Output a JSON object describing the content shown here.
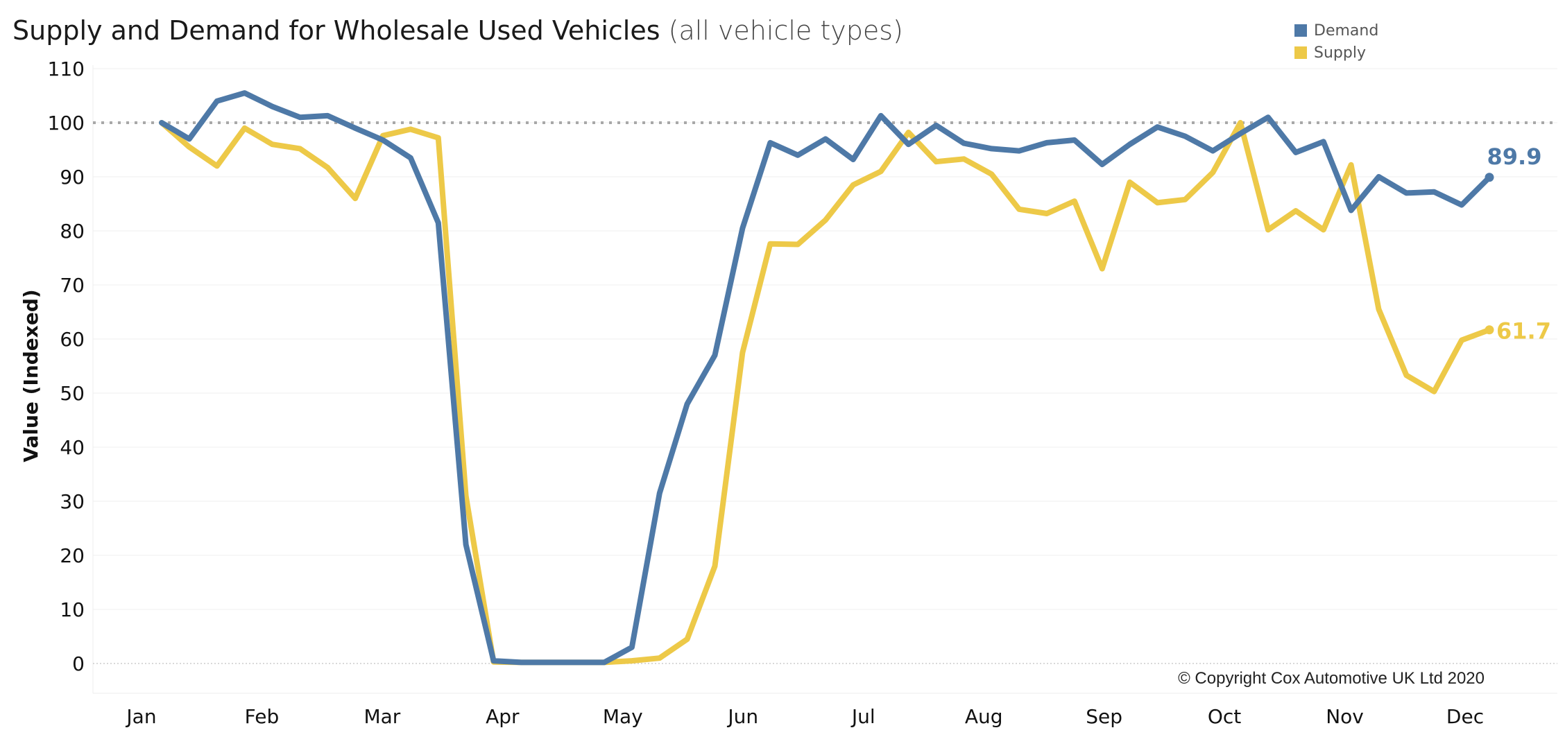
{
  "chart_data": {
    "type": "line",
    "title": "Supply and Demand for Wholesale Used Vehicles",
    "subtitle": "(all vehicle types)",
    "ylabel": "Value (Indexed)",
    "xlabel": "",
    "ylim": [
      0,
      110
    ],
    "yticks": [
      0,
      10,
      20,
      30,
      40,
      50,
      60,
      70,
      80,
      90,
      100,
      110
    ],
    "months": [
      "Jan",
      "Feb",
      "Mar",
      "Apr",
      "May",
      "Jun",
      "Jul",
      "Aug",
      "Sep",
      "Oct",
      "Nov",
      "Dec"
    ],
    "reference_line": 100,
    "legend_position": "top-right",
    "series": [
      {
        "name": "Demand",
        "color": "#4e79a7",
        "end_label": "89.9",
        "values": [
          100,
          97,
          104,
          105.5,
          103,
          101,
          101.3,
          99,
          96.8,
          93.5,
          81.5,
          22,
          0.5,
          0.2,
          0.2,
          0.2,
          0.2,
          3,
          31.5,
          48,
          57,
          80.5,
          96.3,
          94,
          97,
          93.2,
          101.3,
          96,
          99.5,
          96.2,
          95.2,
          94.8,
          96.3,
          96.8,
          92.3,
          96,
          99.2,
          97.5,
          94.8,
          98,
          101,
          94.5,
          96.5,
          83.8,
          90,
          87,
          87.2,
          84.8,
          89.9
        ]
      },
      {
        "name": "Supply",
        "color": "#edc948",
        "end_label": "61.7",
        "values": [
          100,
          95.5,
          92,
          99,
          96,
          95.2,
          91.7,
          86,
          97.6,
          98.8,
          97.2,
          31,
          0.3,
          0.2,
          0.2,
          0.2,
          0.2,
          0.5,
          1,
          4.5,
          18,
          57.5,
          77.6,
          77.5,
          82,
          88.5,
          91,
          98.2,
          92.8,
          93.3,
          90.5,
          84,
          83.2,
          85.5,
          73,
          89,
          85.2,
          85.8,
          90.8,
          100,
          80.2,
          83.7,
          80.2,
          92.2,
          65.5,
          53.3,
          50.3,
          59.8,
          61.7
        ]
      }
    ]
  },
  "copyright": "© Copyright Cox Automotive UK Ltd 2020"
}
